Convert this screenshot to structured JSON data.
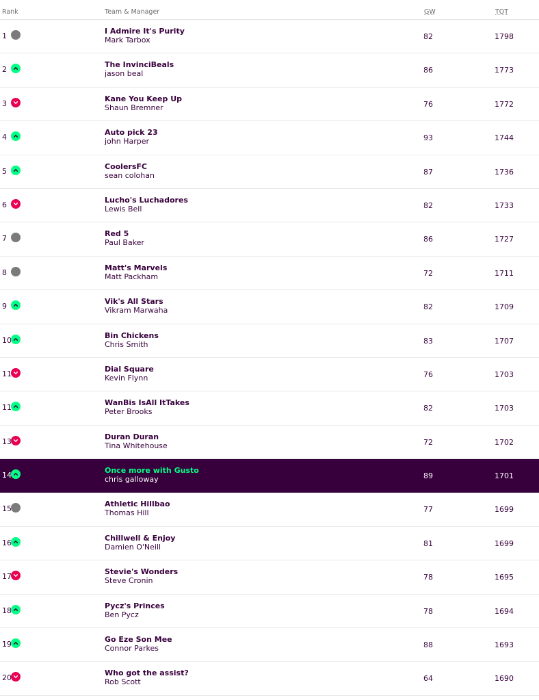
{
  "header": {
    "rank": "Rank",
    "team": "Team & Manager",
    "gw": "GW",
    "tot": "TOT"
  },
  "colors": {
    "purple": "#37003c",
    "up": "#00ff85",
    "down": "#e90052",
    "same": "#7b7b7b"
  },
  "rows": [
    {
      "rank": "1",
      "move": "same",
      "team": "I Admire It's Purity",
      "manager": "Mark Tarbox",
      "gw": "82",
      "tot": "1798"
    },
    {
      "rank": "2",
      "move": "up",
      "team": "The InvinciBeals",
      "manager": "jason beal",
      "gw": "86",
      "tot": "1773"
    },
    {
      "rank": "3",
      "move": "down",
      "team": "Kane You Keep Up",
      "manager": "Shaun Bremner",
      "gw": "76",
      "tot": "1772"
    },
    {
      "rank": "4",
      "move": "up",
      "team": "Auto pick 23",
      "manager": "john Harper",
      "gw": "93",
      "tot": "1744"
    },
    {
      "rank": "5",
      "move": "up",
      "team": "CoolersFC",
      "manager": "sean colohan",
      "gw": "87",
      "tot": "1736"
    },
    {
      "rank": "6",
      "move": "down",
      "team": "Lucho's Luchadores",
      "manager": "Lewis Bell",
      "gw": "82",
      "tot": "1733"
    },
    {
      "rank": "7",
      "move": "same",
      "team": "Red 5",
      "manager": "Paul Baker",
      "gw": "86",
      "tot": "1727"
    },
    {
      "rank": "8",
      "move": "same",
      "team": "Matt's Marvels",
      "manager": "Matt Packham",
      "gw": "72",
      "tot": "1711"
    },
    {
      "rank": "9",
      "move": "up",
      "team": "Vik's All Stars",
      "manager": "Vikram Marwaha",
      "gw": "82",
      "tot": "1709"
    },
    {
      "rank": "10",
      "move": "up",
      "team": "Bin Chickens",
      "manager": "Chris Smith",
      "gw": "83",
      "tot": "1707"
    },
    {
      "rank": "11",
      "move": "down",
      "team": "Dial Square",
      "manager": "Kevin Flynn",
      "gw": "76",
      "tot": "1703"
    },
    {
      "rank": "11",
      "move": "up",
      "team": "WanBis IsAll ItTakes",
      "manager": "Peter Brooks",
      "gw": "82",
      "tot": "1703"
    },
    {
      "rank": "13",
      "move": "down",
      "team": "Duran Duran",
      "manager": "Tina Whitehouse",
      "gw": "72",
      "tot": "1702"
    },
    {
      "rank": "14",
      "move": "up",
      "team": "Once more with Gusto",
      "manager": "chris galloway",
      "gw": "89",
      "tot": "1701",
      "highlight": true
    },
    {
      "rank": "15",
      "move": "same",
      "team": "Athletic Hillbao",
      "manager": "Thomas Hill",
      "gw": "77",
      "tot": "1699"
    },
    {
      "rank": "16",
      "move": "up",
      "team": "Chillwell & Enjoy",
      "manager": "Damien O'Neill",
      "gw": "81",
      "tot": "1699"
    },
    {
      "rank": "17",
      "move": "down",
      "team": "Stevie's Wonders",
      "manager": "Steve Cronin",
      "gw": "78",
      "tot": "1695"
    },
    {
      "rank": "18",
      "move": "up",
      "team": "Pycz's Princes",
      "manager": "Ben Pycz",
      "gw": "78",
      "tot": "1694"
    },
    {
      "rank": "19",
      "move": "up",
      "team": "Go Eze Son Mee",
      "manager": "Connor Parkes",
      "gw": "88",
      "tot": "1693"
    },
    {
      "rank": "20",
      "move": "down",
      "team": "Who got the assist?",
      "manager": "Rob Scott",
      "gw": "64",
      "tot": "1690"
    }
  ]
}
